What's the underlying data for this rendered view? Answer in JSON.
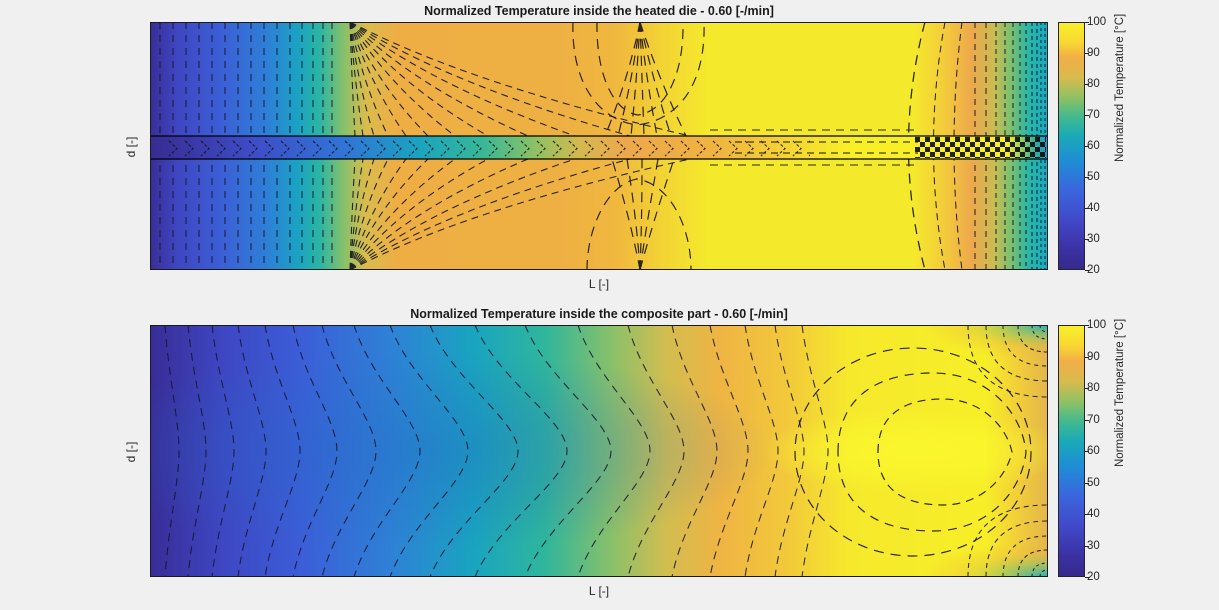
{
  "figure": {
    "background_color": "#f0f0f0",
    "type": "MATLAB-style filled contour figure, 2 stacked subplots"
  },
  "charts": [
    {
      "title": "Normalized Temperature inside the heated die - 0.60 [-/min]",
      "xlabel": "L [-]",
      "ylabel": "d [-]",
      "colorbar": {
        "label": "Normalized Temperature [°C]",
        "min": 20,
        "max": 100,
        "ticks": [
          100,
          90,
          80,
          70,
          60,
          50,
          40,
          30,
          20
        ]
      }
    },
    {
      "title": "Normalized Temperature inside the composite part - 0.60 [-/min]",
      "xlabel": "L [-]",
      "ylabel": "d [-]",
      "colorbar": {
        "label": "Normalized Temperature [°C]",
        "min": 20,
        "max": 100,
        "ticks": [
          100,
          90,
          80,
          70,
          60,
          50,
          40,
          30,
          20
        ]
      }
    }
  ],
  "chart_data": [
    {
      "type": "heatmap",
      "subtype": "filled-contour with dashed contour lines",
      "title": "Normalized Temperature inside the heated die - 0.60 [-/min]",
      "xlabel": "L [-]",
      "ylabel": "d [-]",
      "x_range": [
        0,
        1
      ],
      "y_range": [
        0,
        1
      ],
      "value_label": "Normalized Temperature [°C]",
      "value_range": [
        20,
        100
      ],
      "colormap": {
        "20": "#362a8c",
        "30": "#4046c8",
        "40": "#3a63dc",
        "50": "#2387d2",
        "60": "#1ba7b5",
        "70": "#51ba7d",
        "80": "#c3bd53",
        "90": "#f2b244",
        "100": "#f8ee27"
      },
      "features": [
        "thin composite channel strip across the middle of the die (y ≈ 0.46-0.55) bounded by solid black lines",
        "cold blue inlet region at left with vertical dashed contours",
        "contour fan converging at top/bottom edge near L ≈ 0.22 (heater gap)",
        "orange dome of contours converging at edge near L ≈ 0.55 (second heater gap)",
        "hot bright-yellow zone L ≈ 0.6-0.85",
        "cooling fan of dense vertical dashed contours at the right (die exit), teal at edge"
      ],
      "sampled_profiles": {
        "x": [
          0,
          0.05,
          0.1,
          0.15,
          0.2,
          0.25,
          0.3,
          0.4,
          0.5,
          0.55,
          0.6,
          0.7,
          0.8,
          0.85,
          0.9,
          0.95,
          1.0
        ],
        "die_body_temperature": [
          24,
          33,
          45,
          58,
          72,
          84,
          87,
          88,
          86,
          90,
          96,
          98,
          98,
          97,
          88,
          65,
          48
        ],
        "composite_channel_temperature": [
          22,
          27,
          33,
          41,
          50,
          58,
          68,
          78,
          86,
          89,
          92,
          96,
          99,
          100,
          100,
          97,
          60
        ]
      }
    },
    {
      "type": "heatmap",
      "subtype": "filled-contour with dashed contour lines",
      "title": "Normalized Temperature inside the composite part - 0.60 [-/min]",
      "xlabel": "L [-]",
      "ylabel": "d [-]",
      "x_range": [
        0,
        1
      ],
      "y_range": [
        0,
        1
      ],
      "value_label": "Normalized Temperature [°C]",
      "value_range": [
        20,
        100
      ],
      "colormap": {
        "20": "#362a8c",
        "30": "#4046c8",
        "40": "#3a63dc",
        "50": "#2387d2",
        "60": "#1ba7b5",
        "70": "#51ba7d",
        "80": "#c3bd53",
        "90": "#f2b244",
        "100": "#f8ee27"
      },
      "features": [
        "cold dark-blue region at left, core (mid-thickness) lags behind surfaces so contours bow to the right at mid height",
        "gradual heating left to right through teal, green, mustard and orange",
        "closed dashed contour rings around a bright-yellow hot spot near L ≈ 0.85 at mid thickness",
        "cooling at the right corners (die exit) with dense dashed corner arcs, teal in the corners"
      ],
      "sampled_profiles": {
        "x": [
          0,
          0.05,
          0.1,
          0.15,
          0.2,
          0.25,
          0.3,
          0.4,
          0.5,
          0.55,
          0.6,
          0.7,
          0.8,
          0.85,
          0.9,
          0.95,
          1.0
        ],
        "centerline_temperature": [
          20,
          21,
          23,
          27,
          33,
          41,
          50,
          64,
          76,
          81,
          86,
          94,
          99,
          100,
          100,
          98,
          95
        ],
        "surface_temperature": [
          22,
          26,
          32,
          40,
          49,
          59,
          70,
          82,
          90,
          92,
          95,
          98,
          99,
          97,
          92,
          78,
          55
        ]
      }
    }
  ]
}
